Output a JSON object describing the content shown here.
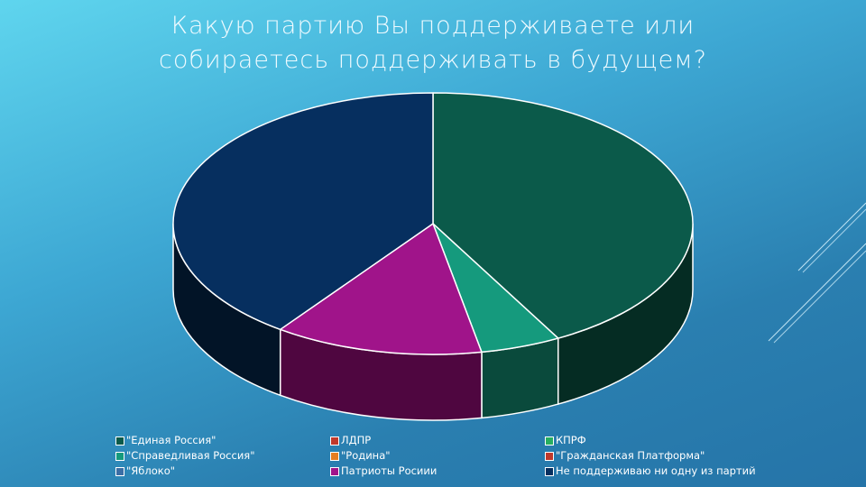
{
  "slide": {
    "title_line1": "Какую партию Вы поддерживаете или",
    "title_line2": "собираетесь поддерживать в будущем?"
  },
  "colors": {
    "background_top": "#5fd5ee",
    "background_bottom": "#2574a8"
  },
  "chart_data": {
    "type": "pie",
    "style": "3d",
    "categories": [
      "\"Единая Россия\"",
      "ЛДПР",
      "КПРФ",
      "\"Справедливая Россия\"",
      "\"Родина\"",
      "\"Гражданская Платформа\"",
      "\"Яблоко\"",
      "Патриоты Росиии",
      "Не поддерживаю ни одну из партий"
    ],
    "values": [
      42,
      0,
      0,
      5,
      0,
      0,
      0,
      13,
      40
    ],
    "colors": [
      "#0b5a4a",
      "#c0392b",
      "#27ae60",
      "#159a7d",
      "#e67e22",
      "#c0392b",
      "#3a6ea5",
      "#a0148a",
      "#062f5f"
    ],
    "side_colors": [
      "#052c23",
      "#5a1a14",
      "#134f2c",
      "#0a4a3c",
      "#6e3c10",
      "#5a1a14",
      "#1c3550",
      "#4f0640",
      "#021427"
    ],
    "legend_placement": "bottom"
  }
}
